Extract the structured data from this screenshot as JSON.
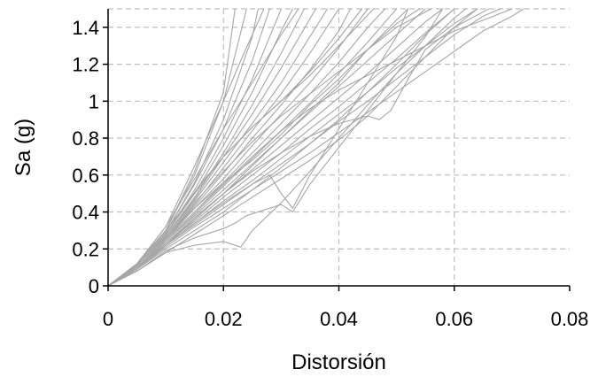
{
  "chart_data": {
    "type": "line",
    "title": "",
    "xlabel": "Distorsión",
    "ylabel": "Sa (g)",
    "xlim": [
      0,
      0.08
    ],
    "ylim": [
      0,
      1.5
    ],
    "x_ticks": [
      0,
      0.02,
      0.04,
      0.06,
      0.08
    ],
    "x_tick_labels": [
      "0",
      "0.02",
      "0.04",
      "0.06",
      "0.08"
    ],
    "y_ticks": [
      0,
      0.2,
      0.4,
      0.6,
      0.8,
      1.0,
      1.2,
      1.4
    ],
    "y_tick_labels": [
      "0",
      "0.2",
      "0.4",
      "0.6",
      "0.8",
      "1",
      "1.2",
      "1.4"
    ],
    "grid": true,
    "legend": "none",
    "line_color": "#a6a6a6",
    "series": [
      {
        "x": [
          0,
          0.005,
          0.01,
          0.015,
          0.02,
          0.022
        ],
        "y": [
          0,
          0.12,
          0.3,
          0.62,
          1.05,
          1.5
        ]
      },
      {
        "x": [
          0,
          0.005,
          0.01,
          0.015,
          0.02,
          0.024
        ],
        "y": [
          0,
          0.12,
          0.3,
          0.6,
          1.0,
          1.5
        ]
      },
      {
        "x": [
          0,
          0.005,
          0.01,
          0.015,
          0.02,
          0.025,
          0.026
        ],
        "y": [
          0,
          0.12,
          0.29,
          0.56,
          0.9,
          1.35,
          1.5
        ]
      },
      {
        "x": [
          0,
          0.005,
          0.01,
          0.015,
          0.02,
          0.025,
          0.028
        ],
        "y": [
          0,
          0.12,
          0.29,
          0.55,
          0.85,
          1.22,
          1.5
        ]
      },
      {
        "x": [
          0,
          0.005,
          0.01,
          0.015,
          0.02,
          0.025,
          0.03
        ],
        "y": [
          0,
          0.11,
          0.28,
          0.52,
          0.8,
          1.12,
          1.5
        ]
      },
      {
        "x": [
          0,
          0.005,
          0.01,
          0.015,
          0.02,
          0.025,
          0.03,
          0.032
        ],
        "y": [
          0,
          0.11,
          0.28,
          0.5,
          0.76,
          1.05,
          1.38,
          1.5
        ]
      },
      {
        "x": [
          0,
          0.005,
          0.01,
          0.015,
          0.02,
          0.025,
          0.03,
          0.034
        ],
        "y": [
          0,
          0.11,
          0.27,
          0.48,
          0.72,
          0.98,
          1.26,
          1.5
        ]
      },
      {
        "x": [
          0,
          0.005,
          0.01,
          0.015,
          0.02,
          0.025,
          0.03,
          0.036
        ],
        "y": [
          0,
          0.11,
          0.27,
          0.47,
          0.7,
          0.93,
          1.18,
          1.5
        ]
      },
      {
        "x": [
          0,
          0.005,
          0.01,
          0.015,
          0.02,
          0.025,
          0.03,
          0.035,
          0.038
        ],
        "y": [
          0,
          0.11,
          0.27,
          0.46,
          0.67,
          0.88,
          1.1,
          1.35,
          1.5
        ]
      },
      {
        "x": [
          0,
          0.005,
          0.01,
          0.015,
          0.02,
          0.025,
          0.03,
          0.035,
          0.04
        ],
        "y": [
          0,
          0.11,
          0.26,
          0.44,
          0.64,
          0.84,
          1.04,
          1.26,
          1.5
        ]
      },
      {
        "x": [
          0,
          0.005,
          0.01,
          0.015,
          0.02,
          0.025,
          0.03,
          0.035,
          0.04,
          0.042
        ],
        "y": [
          0,
          0.11,
          0.26,
          0.43,
          0.61,
          0.8,
          0.98,
          1.17,
          1.38,
          1.5
        ]
      },
      {
        "x": [
          0,
          0.005,
          0.01,
          0.015,
          0.02,
          0.025,
          0.03,
          0.035,
          0.04,
          0.045
        ],
        "y": [
          0,
          0.1,
          0.25,
          0.42,
          0.58,
          0.76,
          0.93,
          1.1,
          1.29,
          1.5
        ]
      },
      {
        "x": [
          0,
          0.005,
          0.01,
          0.015,
          0.02,
          0.025,
          0.03,
          0.035,
          0.04,
          0.045,
          0.048
        ],
        "y": [
          0,
          0.1,
          0.25,
          0.4,
          0.56,
          0.72,
          0.88,
          1.04,
          1.21,
          1.4,
          1.5
        ]
      },
      {
        "x": [
          0,
          0.005,
          0.01,
          0.015,
          0.02,
          0.025,
          0.03,
          0.035,
          0.04,
          0.045,
          0.05
        ],
        "y": [
          0,
          0.1,
          0.24,
          0.39,
          0.54,
          0.69,
          0.84,
          0.99,
          1.15,
          1.32,
          1.5
        ]
      },
      {
        "x": [
          0,
          0.005,
          0.01,
          0.015,
          0.02,
          0.025,
          0.03,
          0.035,
          0.04,
          0.045,
          0.05,
          0.055
        ],
        "y": [
          0,
          0.1,
          0.24,
          0.38,
          0.52,
          0.66,
          0.8,
          0.94,
          1.08,
          1.22,
          1.36,
          1.5
        ]
      },
      {
        "x": [
          0,
          0.005,
          0.01,
          0.015,
          0.02,
          0.025,
          0.03,
          0.035,
          0.04,
          0.045,
          0.05,
          0.055,
          0.058
        ],
        "y": [
          0,
          0.1,
          0.23,
          0.36,
          0.5,
          0.63,
          0.76,
          0.89,
          1.02,
          1.15,
          1.29,
          1.43,
          1.5
        ]
      },
      {
        "x": [
          0,
          0.005,
          0.01,
          0.015,
          0.02,
          0.025,
          0.03,
          0.035,
          0.04,
          0.045,
          0.05,
          0.055,
          0.06
        ],
        "y": [
          0,
          0.09,
          0.23,
          0.35,
          0.48,
          0.6,
          0.72,
          0.85,
          0.97,
          1.1,
          1.23,
          1.37,
          1.5
        ]
      },
      {
        "x": [
          0,
          0.005,
          0.01,
          0.015,
          0.02,
          0.025,
          0.03,
          0.035,
          0.04,
          0.045,
          0.05,
          0.055,
          0.06,
          0.064
        ],
        "y": [
          0,
          0.09,
          0.22,
          0.34,
          0.46,
          0.57,
          0.69,
          0.81,
          0.93,
          1.05,
          1.18,
          1.3,
          1.42,
          1.5
        ]
      },
      {
        "x": [
          0,
          0.005,
          0.01,
          0.015,
          0.02,
          0.025,
          0.03,
          0.035,
          0.04,
          0.045,
          0.05,
          0.055,
          0.06,
          0.065,
          0.068
        ],
        "y": [
          0,
          0.09,
          0.22,
          0.33,
          0.44,
          0.55,
          0.66,
          0.77,
          0.89,
          1.0,
          1.12,
          1.24,
          1.36,
          1.46,
          1.5
        ]
      },
      {
        "x": [
          0,
          0.005,
          0.01,
          0.015,
          0.02,
          0.025,
          0.03,
          0.035,
          0.04,
          0.045,
          0.05,
          0.055,
          0.06,
          0.065,
          0.07,
          0.072
        ],
        "y": [
          0,
          0.09,
          0.21,
          0.32,
          0.42,
          0.52,
          0.62,
          0.72,
          0.83,
          0.94,
          1.05,
          1.16,
          1.27,
          1.38,
          1.46,
          1.5
        ]
      },
      {
        "x": [
          0,
          0.005,
          0.01,
          0.015,
          0.02,
          0.023,
          0.025,
          0.03,
          0.035,
          0.04,
          0.045,
          0.05,
          0.055,
          0.06,
          0.062
        ],
        "y": [
          0,
          0.08,
          0.18,
          0.22,
          0.24,
          0.21,
          0.3,
          0.45,
          0.62,
          0.8,
          0.98,
          1.15,
          1.3,
          1.45,
          1.5
        ]
      },
      {
        "x": [
          0,
          0.005,
          0.01,
          0.015,
          0.02,
          0.022,
          0.024,
          0.027,
          0.03,
          0.032,
          0.035,
          0.04,
          0.045,
          0.05,
          0.055,
          0.058
        ],
        "y": [
          0,
          0.08,
          0.19,
          0.26,
          0.31,
          0.34,
          0.38,
          0.41,
          0.44,
          0.4,
          0.55,
          0.75,
          0.95,
          1.15,
          1.35,
          1.5
        ]
      },
      {
        "x": [
          0,
          0.005,
          0.01,
          0.015,
          0.02,
          0.025,
          0.028,
          0.03,
          0.032,
          0.035,
          0.04,
          0.045,
          0.05,
          0.052
        ],
        "y": [
          0,
          0.09,
          0.22,
          0.34,
          0.45,
          0.55,
          0.6,
          0.5,
          0.42,
          0.6,
          0.85,
          1.1,
          1.35,
          1.5
        ]
      },
      {
        "x": [
          0,
          0.005,
          0.01,
          0.015,
          0.02,
          0.025,
          0.03,
          0.035,
          0.04,
          0.045,
          0.047,
          0.049,
          0.052,
          0.055,
          0.06,
          0.066
        ],
        "y": [
          0,
          0.1,
          0.23,
          0.37,
          0.5,
          0.62,
          0.72,
          0.81,
          0.88,
          0.92,
          0.9,
          0.95,
          1.12,
          1.28,
          1.4,
          1.5
        ]
      },
      {
        "x": [
          0,
          0.005,
          0.01,
          0.015,
          0.02,
          0.025,
          0.03,
          0.035,
          0.04,
          0.045,
          0.05,
          0.055,
          0.06,
          0.066,
          0.07
        ],
        "y": [
          0,
          0.1,
          0.25,
          0.4,
          0.55,
          0.7,
          0.84,
          0.96,
          1.06,
          1.14,
          1.22,
          1.3,
          1.38,
          1.45,
          1.5
        ]
      },
      {
        "x": [
          0,
          0.005,
          0.01,
          0.015,
          0.02,
          0.025,
          0.03,
          0.035,
          0.04,
          0.045,
          0.05,
          0.056
        ],
        "y": [
          0,
          0.11,
          0.26,
          0.45,
          0.62,
          0.78,
          0.92,
          1.04,
          1.16,
          1.28,
          1.4,
          1.5
        ]
      },
      {
        "x": [
          0,
          0.005,
          0.01,
          0.015,
          0.02,
          0.025,
          0.03,
          0.035,
          0.04,
          0.044
        ],
        "y": [
          0,
          0.11,
          0.28,
          0.5,
          0.7,
          0.86,
          1.0,
          1.16,
          1.34,
          1.5
        ]
      },
      {
        "x": [
          0,
          0.005,
          0.01,
          0.013,
          0.016,
          0.02,
          0.025,
          0.03,
          0.035,
          0.04,
          0.046
        ],
        "y": [
          0,
          0.12,
          0.3,
          0.42,
          0.55,
          0.7,
          0.86,
          1.0,
          1.14,
          1.3,
          1.5
        ]
      },
      {
        "x": [
          0,
          0.005,
          0.01,
          0.015,
          0.02,
          0.025,
          0.03,
          0.033
        ],
        "y": [
          0,
          0.12,
          0.32,
          0.58,
          0.85,
          1.1,
          1.36,
          1.5
        ]
      },
      {
        "x": [
          0,
          0.005,
          0.01,
          0.015,
          0.02,
          0.023,
          0.027
        ],
        "y": [
          0,
          0.12,
          0.32,
          0.65,
          1.0,
          1.22,
          1.5
        ]
      },
      {
        "x": [
          0,
          0.005,
          0.01,
          0.015,
          0.02,
          0.025,
          0.03,
          0.035,
          0.04,
          0.045,
          0.05,
          0.054
        ],
        "y": [
          0,
          0.11,
          0.26,
          0.42,
          0.56,
          0.68,
          0.82,
          0.98,
          1.12,
          1.28,
          1.42,
          1.5
        ]
      },
      {
        "x": [
          0,
          0.005,
          0.01,
          0.015,
          0.02,
          0.025,
          0.03,
          0.035,
          0.04,
          0.045,
          0.05,
          0.055,
          0.06,
          0.064
        ],
        "y": [
          0,
          0.08,
          0.18,
          0.28,
          0.38,
          0.48,
          0.58,
          0.68,
          0.79,
          0.92,
          1.08,
          1.24,
          1.4,
          1.5
        ]
      },
      {
        "x": [
          0,
          0.005,
          0.01,
          0.015,
          0.02,
          0.025,
          0.03,
          0.035,
          0.04,
          0.045,
          0.05,
          0.055,
          0.06
        ],
        "y": [
          0,
          0.09,
          0.2,
          0.3,
          0.4,
          0.52,
          0.64,
          0.77,
          0.9,
          1.05,
          1.2,
          1.36,
          1.5
        ]
      },
      {
        "x": [
          0,
          0.005,
          0.01,
          0.015,
          0.02,
          0.025,
          0.03,
          0.035,
          0.04,
          0.045,
          0.05,
          0.052
        ],
        "y": [
          0,
          0.1,
          0.22,
          0.36,
          0.5,
          0.65,
          0.8,
          0.95,
          1.1,
          1.28,
          1.44,
          1.5
        ]
      }
    ]
  }
}
